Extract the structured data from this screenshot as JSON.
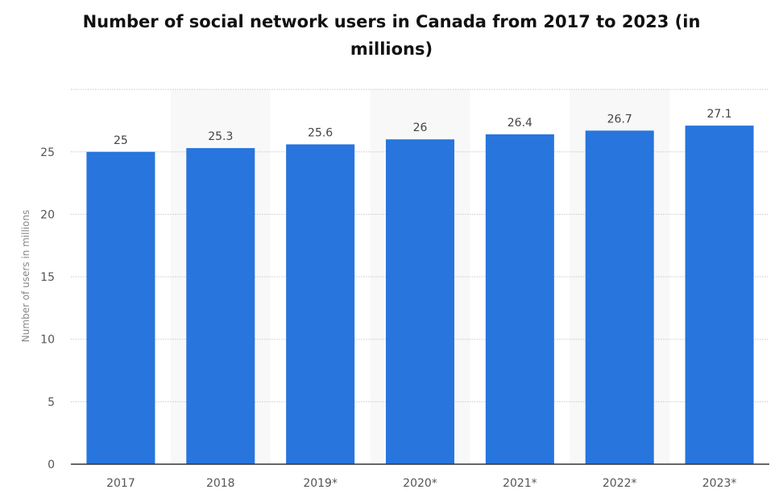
{
  "chart_data": {
    "type": "bar",
    "title": "Number of social network users in Canada from 2017 to 2023 (in millions)",
    "xlabel": "",
    "ylabel": "Number of users in millions",
    "categories": [
      "2017",
      "2018",
      "2019*",
      "2020*",
      "2021*",
      "2022*",
      "2023*"
    ],
    "values": [
      25,
      25.3,
      25.6,
      26,
      26.4,
      26.7,
      27.1
    ],
    "data_labels": [
      "25",
      "25.3",
      "25.6",
      "26",
      "26.4",
      "26.7",
      "27.1"
    ],
    "yticks": [
      0,
      5,
      10,
      15,
      20,
      25
    ],
    "ylim": [
      0,
      30
    ],
    "grid": true,
    "bar_color": "#2775dd",
    "alt_band_color": "#f8f8f8"
  }
}
